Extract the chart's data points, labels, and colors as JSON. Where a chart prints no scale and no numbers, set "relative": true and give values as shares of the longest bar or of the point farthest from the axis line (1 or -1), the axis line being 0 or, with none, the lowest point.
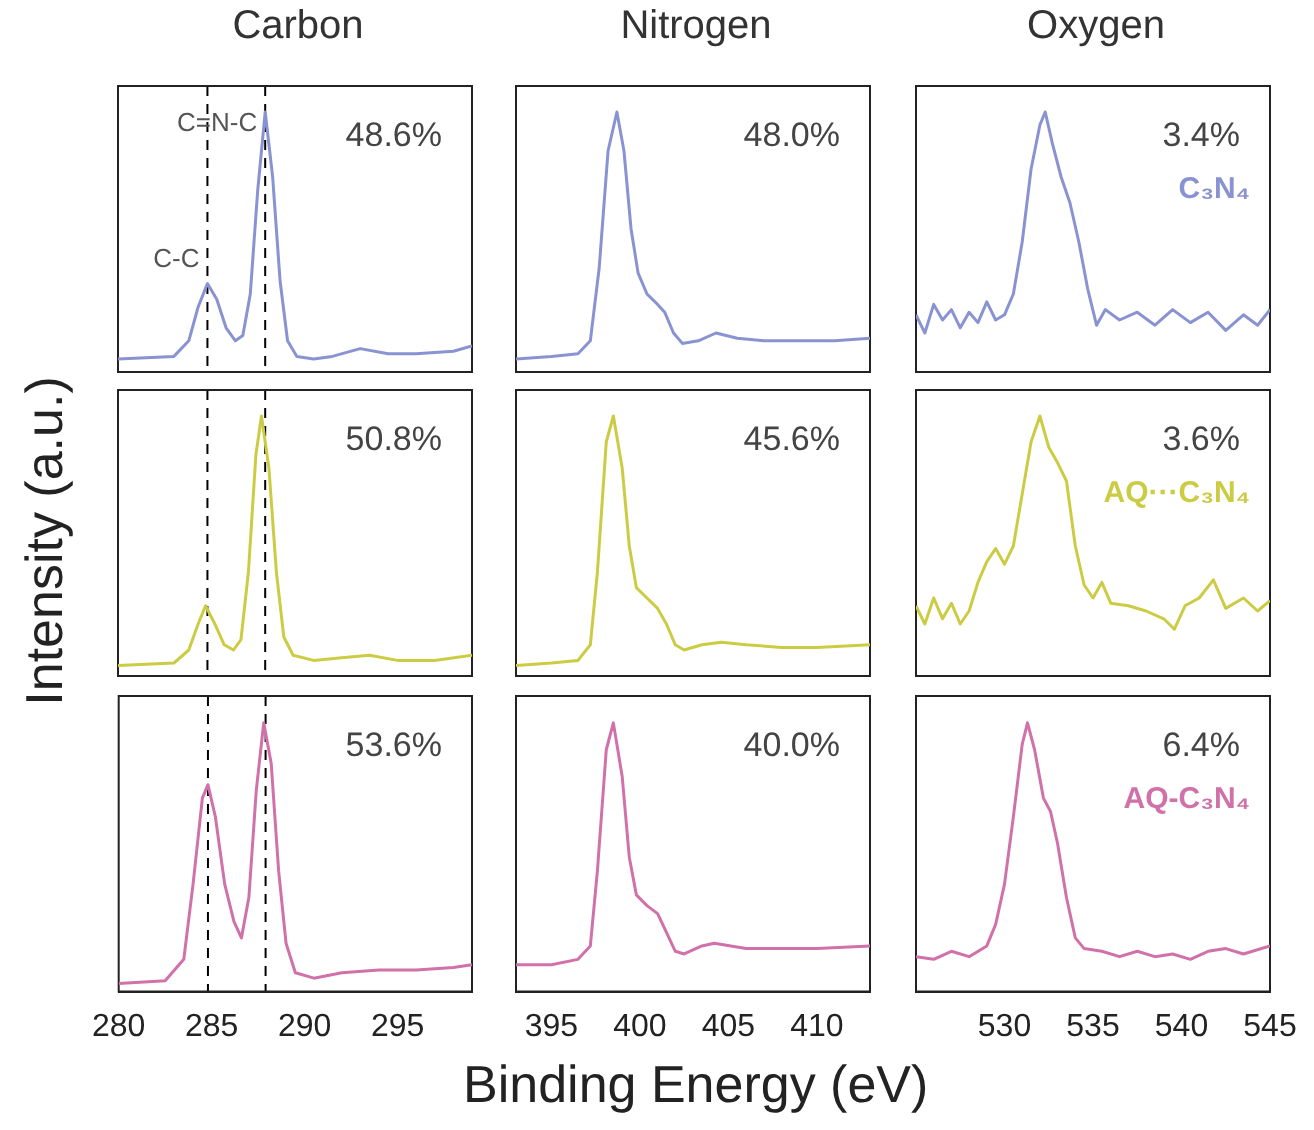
{
  "chart_data": [
    {
      "type": "line",
      "title": "Carbon",
      "relative": true,
      "xlim": [
        280,
        299
      ],
      "xticks": [
        280,
        285,
        290,
        295
      ],
      "tick_labels": false,
      "annotations": [
        "48.6%",
        {
          "text": "C=N-C",
          "x": 287.9,
          "y": 1
        },
        {
          "text": "C-C",
          "x": 284.8,
          "y": 0.34
        }
      ],
      "ref_lines": [
        {
          "axis": "x",
          "value": 284.8,
          "color": "#000000",
          "line_style": "dashed"
        },
        {
          "axis": "x",
          "value": 287.9,
          "color": "#000000",
          "line_style": "dashed"
        }
      ],
      "x": [
        280,
        283,
        283.8,
        284.3,
        284.8,
        285.3,
        285.8,
        286.3,
        286.7,
        287.1,
        287.5,
        287.9,
        288.3,
        288.7,
        289.1,
        289.6,
        290.5,
        291.5,
        293,
        294.5,
        296,
        298,
        299
      ],
      "series": [
        {
          "color": "#8a93d2",
          "values": [
            0.05,
            0.06,
            0.12,
            0.25,
            0.34,
            0.28,
            0.17,
            0.12,
            0.14,
            0.3,
            0.7,
            1,
            0.75,
            0.35,
            0.12,
            0.06,
            0.05,
            0.06,
            0.09,
            0.07,
            0.07,
            0.08,
            0.1
          ]
        }
      ]
    },
    {
      "type": "line",
      "title": "Nitrogen",
      "relative": true,
      "xlim": [
        393,
        413
      ],
      "xticks": [
        395,
        400,
        405,
        410
      ],
      "tick_labels": false,
      "annotations": [
        "48.0%"
      ],
      "x": [
        393,
        395,
        396.5,
        397.2,
        397.7,
        398.2,
        398.7,
        399.1,
        399.5,
        399.9,
        400.4,
        401,
        401.4,
        401.9,
        402.4,
        403.3,
        404.3,
        405.5,
        407,
        409,
        411,
        413
      ],
      "series": [
        {
          "color": "#8a93d2",
          "values": [
            0.05,
            0.06,
            0.07,
            0.12,
            0.4,
            0.85,
            1,
            0.85,
            0.55,
            0.38,
            0.3,
            0.26,
            0.23,
            0.15,
            0.11,
            0.12,
            0.15,
            0.13,
            0.12,
            0.12,
            0.12,
            0.13
          ]
        }
      ]
    },
    {
      "type": "line",
      "title": "Oxygen",
      "relative": true,
      "xlim": [
        525,
        545
      ],
      "xticks": [
        530,
        535,
        540,
        545
      ],
      "tick_labels": false,
      "annotations": [
        "3.4%"
      ],
      "x": [
        525,
        525.5,
        526,
        526.5,
        527,
        527.5,
        528,
        528.5,
        529,
        529.5,
        530,
        530.5,
        531,
        531.5,
        532,
        532.3,
        532.7,
        533.2,
        533.7,
        534.2,
        534.7,
        535.2,
        535.7,
        536.5,
        537.5,
        538.5,
        539.5,
        540.5,
        541.5,
        542.5,
        543.5,
        544.3,
        545
      ],
      "series": [
        {
          "name": "C₃N₄",
          "color": "#8a93d2",
          "values": [
            0.22,
            0.15,
            0.26,
            0.2,
            0.24,
            0.17,
            0.23,
            0.19,
            0.27,
            0.2,
            0.22,
            0.3,
            0.5,
            0.78,
            0.95,
            1,
            0.88,
            0.75,
            0.65,
            0.5,
            0.32,
            0.18,
            0.24,
            0.2,
            0.23,
            0.18,
            0.24,
            0.19,
            0.23,
            0.16,
            0.22,
            0.18,
            0.24
          ]
        }
      ]
    },
    {
      "type": "line",
      "relative": true,
      "ylabel": "Intensity (a.u.)",
      "xlim": [
        280,
        299
      ],
      "xticks": [
        280,
        285,
        290,
        295
      ],
      "tick_labels": false,
      "annotations": [
        "50.8%"
      ],
      "ref_lines": [
        {
          "axis": "x",
          "value": 284.8,
          "color": "#000000",
          "line_style": "dashed"
        },
        {
          "axis": "x",
          "value": 287.9,
          "color": "#000000",
          "line_style": "dashed"
        }
      ],
      "x": [
        280,
        283,
        283.8,
        284.3,
        284.7,
        285.2,
        285.7,
        286.2,
        286.6,
        287,
        287.4,
        287.7,
        288.1,
        288.5,
        288.9,
        289.4,
        290.5,
        292,
        293.5,
        295,
        297,
        299
      ],
      "series": [
        {
          "color": "#cccc44",
          "values": [
            0.04,
            0.05,
            0.1,
            0.2,
            0.27,
            0.2,
            0.12,
            0.1,
            0.14,
            0.4,
            0.85,
            1,
            0.8,
            0.4,
            0.15,
            0.08,
            0.06,
            0.07,
            0.08,
            0.06,
            0.06,
            0.08
          ]
        }
      ]
    },
    {
      "type": "line",
      "relative": true,
      "xlim": [
        393,
        413
      ],
      "xticks": [
        395,
        400,
        405,
        410
      ],
      "tick_labels": false,
      "annotations": [
        "45.6%"
      ],
      "x": [
        393,
        395,
        396.5,
        397.2,
        397.6,
        398.1,
        398.5,
        399,
        399.4,
        399.8,
        400.4,
        401,
        401.5,
        402,
        402.5,
        403.5,
        404.6,
        406,
        408,
        410,
        413
      ],
      "series": [
        {
          "color": "#cccc44",
          "values": [
            0.04,
            0.05,
            0.06,
            0.12,
            0.4,
            0.9,
            1,
            0.8,
            0.5,
            0.34,
            0.3,
            0.26,
            0.2,
            0.12,
            0.1,
            0.12,
            0.13,
            0.12,
            0.11,
            0.11,
            0.12
          ]
        }
      ]
    },
    {
      "type": "line",
      "relative": true,
      "xlim": [
        525,
        545
      ],
      "xticks": [
        530,
        535,
        540,
        545
      ],
      "tick_labels": false,
      "annotations": [
        "3.6%"
      ],
      "x": [
        525,
        525.5,
        526,
        526.5,
        527,
        527.5,
        528,
        528.5,
        529,
        529.5,
        530,
        530.5,
        531,
        531.5,
        532,
        532.5,
        533,
        533.5,
        534,
        534.5,
        535,
        535.5,
        536,
        537,
        538,
        539,
        539.6,
        540.2,
        541,
        541.8,
        542.5,
        543.5,
        544.3,
        545
      ],
      "series": [
        {
          "name": "AQ···C₃N₄",
          "color": "#cccc44",
          "values": [
            0.27,
            0.2,
            0.3,
            0.22,
            0.28,
            0.2,
            0.25,
            0.36,
            0.44,
            0.49,
            0.43,
            0.5,
            0.7,
            0.9,
            1,
            0.88,
            0.82,
            0.75,
            0.5,
            0.35,
            0.3,
            0.36,
            0.28,
            0.27,
            0.25,
            0.22,
            0.18,
            0.27,
            0.3,
            0.37,
            0.26,
            0.3,
            0.25,
            0.29
          ]
        }
      ]
    },
    {
      "type": "line",
      "relative": true,
      "xlim": [
        280,
        299
      ],
      "xticks": [
        280,
        285,
        290,
        295
      ],
      "tick_labels": "x",
      "annotations": [
        "53.6%"
      ],
      "ref_lines": [
        {
          "axis": "x",
          "value": 284.8,
          "color": "#000000",
          "line_style": "dashed"
        },
        {
          "axis": "x",
          "value": 287.9,
          "color": "#000000",
          "line_style": "dashed"
        }
      ],
      "x": [
        280,
        282.5,
        283.5,
        284,
        284.5,
        284.8,
        285.2,
        285.7,
        286.2,
        286.6,
        287,
        287.4,
        287.8,
        288.2,
        288.6,
        289,
        289.5,
        290.5,
        292,
        294,
        296,
        298,
        299
      ],
      "series": [
        {
          "color": "#d071a9",
          "values": [
            0.03,
            0.04,
            0.12,
            0.4,
            0.72,
            0.77,
            0.65,
            0.4,
            0.26,
            0.2,
            0.35,
            0.75,
            1,
            0.85,
            0.45,
            0.18,
            0.07,
            0.05,
            0.07,
            0.08,
            0.08,
            0.09,
            0.1
          ]
        }
      ]
    },
    {
      "type": "line",
      "relative": true,
      "xlim": [
        393,
        413
      ],
      "xticks": [
        395,
        400,
        405,
        410
      ],
      "tick_labels": "x",
      "xlabel": "Binding Energy (eV)",
      "annotations": [
        "40.0%"
      ],
      "x": [
        393,
        395,
        396.5,
        397.2,
        397.6,
        398.1,
        398.5,
        399,
        399.4,
        399.8,
        400.4,
        401,
        401.5,
        402,
        402.5,
        403.5,
        404.2,
        406,
        408,
        410,
        413
      ],
      "series": [
        {
          "color": "#d071a9",
          "values": [
            0.1,
            0.1,
            0.12,
            0.17,
            0.45,
            0.9,
            1,
            0.8,
            0.5,
            0.36,
            0.32,
            0.29,
            0.22,
            0.15,
            0.14,
            0.17,
            0.18,
            0.16,
            0.16,
            0.16,
            0.17
          ]
        }
      ]
    },
    {
      "type": "line",
      "relative": true,
      "xlim": [
        525,
        545
      ],
      "xticks": [
        530,
        535,
        540,
        545
      ],
      "tick_labels": "x",
      "annotations": [
        "6.4%"
      ],
      "x": [
        525,
        526,
        527,
        528,
        529,
        529.5,
        530,
        530.5,
        531,
        531.3,
        531.7,
        532.2,
        532.6,
        533,
        533.5,
        534,
        534.5,
        535.5,
        536.5,
        537.5,
        538.5,
        539.5,
        540.5,
        541.5,
        542.5,
        543.5,
        545
      ],
      "series": [
        {
          "name": "AQ-C₃N₄",
          "color": "#d071a9",
          "values": [
            0.13,
            0.12,
            0.15,
            0.13,
            0.17,
            0.25,
            0.4,
            0.65,
            0.92,
            1,
            0.9,
            0.72,
            0.67,
            0.55,
            0.35,
            0.2,
            0.16,
            0.15,
            0.13,
            0.15,
            0.13,
            0.14,
            0.12,
            0.15,
            0.16,
            0.14,
            0.17
          ]
        }
      ]
    }
  ]
}
